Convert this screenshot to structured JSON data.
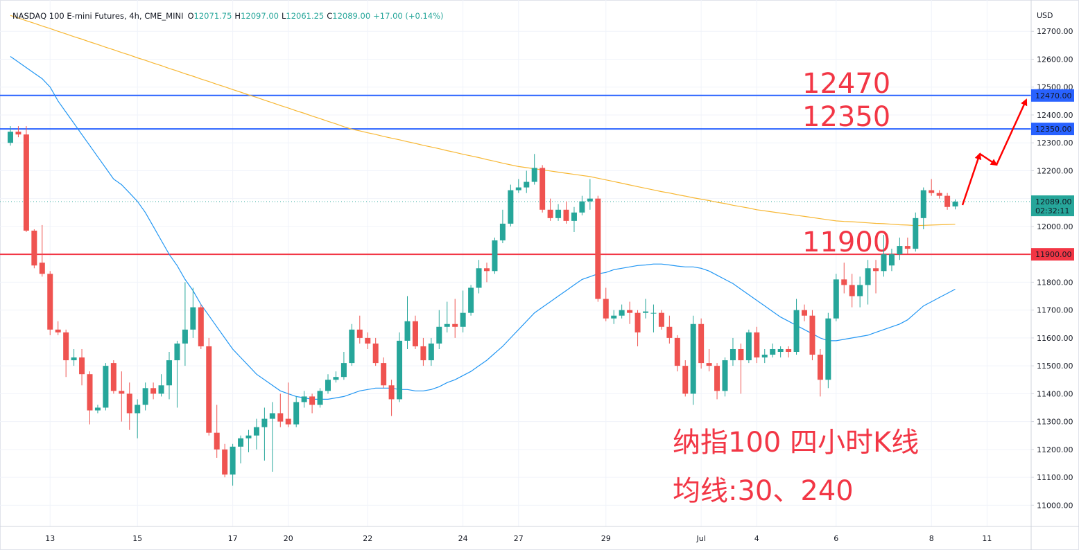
{
  "chart_data": {
    "type": "candlestick",
    "header": {
      "symbol": "NASDAQ 100 E-mini Futures, 4h, CME_MINI",
      "ohlc_labels": [
        "O",
        "H",
        "L",
        "C"
      ],
      "ohlc_values": [
        "12071.75",
        "12097.00",
        "12061.25",
        "12089.00"
      ],
      "change": "+17.00 (+0.14%)"
    },
    "currency": "USD",
    "annotations": [
      "纳指100 四小时K线",
      "均线:30、240"
    ],
    "up_color": "#26a69a",
    "down_color": "#ef5350",
    "grid": true,
    "ylim": [
      10925,
      12800
    ],
    "yticks": [
      {
        "value": 11000,
        "label": "11000.00"
      },
      {
        "value": 11100,
        "label": "11100.00"
      },
      {
        "value": 11200,
        "label": "11200.00"
      },
      {
        "value": 11300,
        "label": "11300.00"
      },
      {
        "value": 11400,
        "label": "11400.00"
      },
      {
        "value": 11500,
        "label": "11500.00"
      },
      {
        "value": 11600,
        "label": "11600.00"
      },
      {
        "value": 11700,
        "label": "11700.00"
      },
      {
        "value": 11800,
        "label": "11800.00"
      },
      {
        "value": 11900,
        "label": "11900.00"
      },
      {
        "value": 12000,
        "label": "12000.00"
      },
      {
        "value": 12100,
        "label": "12100.00"
      },
      {
        "value": 12200,
        "label": "12200.00"
      },
      {
        "value": 12300,
        "label": "12300.00"
      },
      {
        "value": 12400,
        "label": "12400.00"
      },
      {
        "value": 12500,
        "label": "12500.00"
      },
      {
        "value": 12600,
        "label": "12600.00"
      },
      {
        "value": 12700,
        "label": "12700.00"
      }
    ],
    "levels": [
      {
        "value": 12470,
        "label": "12470.00",
        "color": "#2962ff"
      },
      {
        "value": 12350,
        "label": "12350.00",
        "color": "#2962ff"
      },
      {
        "value": 11900,
        "label": "11900.00",
        "color": "#f23645"
      }
    ],
    "last_price": {
      "value": 12089,
      "label": "12089.00",
      "countdown": "02:32:11",
      "color": "#26a69a"
    },
    "categories": [
      null,
      null,
      null,
      null,
      null,
      "13",
      null,
      null,
      null,
      null,
      null,
      null,
      null,
      null,
      null,
      null,
      "15",
      null,
      null,
      null,
      null,
      null,
      null,
      null,
      null,
      null,
      null,
      null,
      "17",
      null,
      null,
      null,
      null,
      null,
      null,
      "20",
      null,
      null,
      null,
      null,
      null,
      null,
      null,
      null,
      null,
      "22",
      null,
      null,
      null,
      null,
      null,
      null,
      null,
      null,
      null,
      null,
      null,
      "24",
      null,
      null,
      null,
      null,
      null,
      null,
      "27",
      null,
      null,
      null,
      null,
      null,
      null,
      null,
      null,
      null,
      null,
      "29",
      null,
      null,
      null,
      null,
      null,
      null,
      null,
      null,
      null,
      null,
      null,
      "Jul",
      null,
      null,
      null,
      null,
      null,
      null,
      "4",
      null,
      null,
      null,
      null,
      null,
      null,
      null,
      null,
      null,
      "6",
      null,
      null,
      null,
      null,
      null,
      null,
      null,
      null,
      null,
      null,
      null,
      "8",
      null,
      null,
      null,
      null,
      null,
      null,
      "11"
    ],
    "ohlc": [
      [
        12300,
        12360,
        12290,
        12340
      ],
      [
        12340,
        12360,
        12320,
        12330
      ],
      [
        12330,
        12360,
        11980,
        11985
      ],
      [
        11985,
        11990,
        11850,
        11860
      ],
      [
        11870,
        12005,
        11820,
        11830
      ],
      [
        11830,
        11840,
        11610,
        11630
      ],
      [
        11630,
        11660,
        11610,
        11620
      ],
      [
        11620,
        11630,
        11460,
        11520
      ],
      [
        11520,
        11560,
        11500,
        11530
      ],
      [
        11530,
        11560,
        11430,
        11470
      ],
      [
        11470,
        11480,
        11290,
        11340
      ],
      [
        11340,
        11360,
        11330,
        11350
      ],
      [
        11350,
        11510,
        11340,
        11500
      ],
      [
        11510,
        11520,
        11400,
        11410
      ],
      [
        11410,
        11480,
        11300,
        11400
      ],
      [
        11400,
        11440,
        11270,
        11330
      ],
      [
        11330,
        11380,
        11240,
        11360
      ],
      [
        11360,
        11440,
        11340,
        11420
      ],
      [
        11420,
        11440,
        11380,
        11400
      ],
      [
        11400,
        11470,
        11390,
        11430
      ],
      [
        11430,
        11550,
        11380,
        11520
      ],
      [
        11520,
        11590,
        11350,
        11580
      ],
      [
        11580,
        11800,
        11500,
        11630
      ],
      [
        11630,
        11780,
        11600,
        11710
      ],
      [
        11710,
        11720,
        11560,
        11570
      ],
      [
        11570,
        11600,
        11250,
        11260
      ],
      [
        11260,
        11360,
        11170,
        11200
      ],
      [
        11200,
        11220,
        11100,
        11110
      ],
      [
        11110,
        11220,
        11070,
        11210
      ],
      [
        11210,
        11250,
        11150,
        11240
      ],
      [
        11240,
        11270,
        11190,
        11250
      ],
      [
        11250,
        11310,
        11200,
        11280
      ],
      [
        11280,
        11350,
        11160,
        11310
      ],
      [
        11310,
        11370,
        11120,
        11330
      ],
      [
        11330,
        11400,
        11280,
        11300
      ],
      [
        11310,
        11440,
        11280,
        11290
      ],
      [
        11290,
        11390,
        11280,
        11370
      ],
      [
        11370,
        11410,
        11350,
        11390
      ],
      [
        11390,
        11400,
        11330,
        11360
      ],
      [
        11360,
        11420,
        11350,
        11410
      ],
      [
        11410,
        11470,
        11400,
        11450
      ],
      [
        11450,
        11480,
        11440,
        11460
      ],
      [
        11460,
        11550,
        11450,
        11510
      ],
      [
        11510,
        11650,
        11500,
        11630
      ],
      [
        11630,
        11680,
        11580,
        11600
      ],
      [
        11600,
        11620,
        11560,
        11580
      ],
      [
        11580,
        11600,
        11500,
        11510
      ],
      [
        11510,
        11530,
        11420,
        11430
      ],
      [
        11430,
        11450,
        11320,
        11380
      ],
      [
        11380,
        11620,
        11370,
        11590
      ],
      [
        11590,
        11750,
        11560,
        11660
      ],
      [
        11660,
        11680,
        11560,
        11570
      ],
      [
        11570,
        11600,
        11500,
        11520
      ],
      [
        11520,
        11600,
        11500,
        11580
      ],
      [
        11580,
        11700,
        11560,
        11640
      ],
      [
        11640,
        11730,
        11620,
        11650
      ],
      [
        11650,
        11740,
        11600,
        11640
      ],
      [
        11640,
        11770,
        11620,
        11690
      ],
      [
        11690,
        11790,
        11680,
        11780
      ],
      [
        11780,
        11880,
        11760,
        11850
      ],
      [
        11850,
        11870,
        11800,
        11840
      ],
      [
        11840,
        11960,
        11830,
        11950
      ],
      [
        11950,
        12060,
        11940,
        12010
      ],
      [
        12010,
        12150,
        12000,
        12130
      ],
      [
        12130,
        12170,
        12120,
        12140
      ],
      [
        12140,
        12200,
        12120,
        12160
      ],
      [
        12160,
        12260,
        12150,
        12210
      ],
      [
        12210,
        12220,
        12050,
        12060
      ],
      [
        12060,
        12100,
        12020,
        12030
      ],
      [
        12030,
        12080,
        12020,
        12060
      ],
      [
        12060,
        12090,
        12010,
        12020
      ],
      [
        12020,
        12070,
        11980,
        12050
      ],
      [
        12050,
        12110,
        12040,
        12090
      ],
      [
        12090,
        12170,
        12060,
        12100
      ],
      [
        12100,
        12110,
        11730,
        11740
      ],
      [
        11740,
        11780,
        11660,
        11670
      ],
      [
        11670,
        11700,
        11650,
        11680
      ],
      [
        11680,
        11720,
        11670,
        11700
      ],
      [
        11700,
        11730,
        11650,
        11690
      ],
      [
        11690,
        11700,
        11570,
        11620
      ],
      [
        11690,
        11740,
        11670,
        11695
      ],
      [
        11690,
        11720,
        11620,
        11690
      ],
      [
        11690,
        11700,
        11630,
        11640
      ],
      [
        11640,
        11680,
        11580,
        11600
      ],
      [
        11600,
        11610,
        11480,
        11500
      ],
      [
        11500,
        11520,
        11390,
        11400
      ],
      [
        11400,
        11680,
        11360,
        11650
      ],
      [
        11650,
        11670,
        11490,
        11510
      ],
      [
        11510,
        11560,
        11480,
        11500
      ],
      [
        11500,
        11510,
        11380,
        11410
      ],
      [
        11410,
        11530,
        11390,
        11520
      ],
      [
        11520,
        11600,
        11500,
        11560
      ],
      [
        11560,
        11580,
        11400,
        11520
      ],
      [
        11520,
        11630,
        11510,
        11620
      ],
      [
        11620,
        11640,
        11510,
        11530
      ],
      [
        11530,
        11560,
        11510,
        11540
      ],
      [
        11540,
        11580,
        11530,
        11560
      ],
      [
        11550,
        11570,
        11530,
        11560
      ],
      [
        11560,
        11570,
        11530,
        11550
      ],
      [
        11550,
        11740,
        11540,
        11700
      ],
      [
        11700,
        11720,
        11660,
        11680
      ],
      [
        11680,
        11700,
        11520,
        11540
      ],
      [
        11540,
        11560,
        11390,
        11450
      ],
      [
        11450,
        11690,
        11420,
        11670
      ],
      [
        11670,
        11830,
        11660,
        11810
      ],
      [
        11810,
        11870,
        11760,
        11790
      ],
      [
        11790,
        11830,
        11710,
        11750
      ],
      [
        11750,
        11820,
        11710,
        11790
      ],
      [
        11790,
        11880,
        11720,
        11850
      ],
      [
        11850,
        11880,
        11760,
        11840
      ],
      [
        11840,
        11970,
        11820,
        11900
      ],
      [
        11860,
        11920,
        11840,
        11900
      ],
      [
        11900,
        11960,
        11880,
        11930
      ],
      [
        11930,
        11960,
        11900,
        11920
      ],
      [
        11920,
        12050,
        11910,
        12030
      ],
      [
        12030,
        12140,
        11990,
        12130
      ],
      [
        12130,
        12170,
        12110,
        12120
      ],
      [
        12120,
        12130,
        12100,
        12110
      ],
      [
        12110,
        12120,
        12060,
        12070
      ],
      [
        12071.75,
        12097,
        12061.25,
        12089
      ],
      null,
      null,
      null,
      null
    ],
    "series": [
      {
        "color": "#2196f3",
        "values": [
          12610,
          12590,
          12570,
          12550,
          12530,
          12500,
          12450,
          12410,
          12370,
          12330,
          12290,
          12250,
          12210,
          12170,
          12150,
          12120,
          12090,
          12050,
          12000,
          11950,
          11900,
          11860,
          11810,
          11770,
          11720,
          11680,
          11640,
          11600,
          11560,
          11530,
          11500,
          11470,
          11450,
          11430,
          11410,
          11400,
          11390,
          11385,
          11380,
          11380,
          11380,
          11385,
          11390,
          11400,
          11410,
          11415,
          11420,
          11420,
          11420,
          11415,
          11415,
          11410,
          11410,
          11415,
          11425,
          11440,
          11450,
          11465,
          11480,
          11500,
          11520,
          11545,
          11570,
          11600,
          11630,
          11660,
          11690,
          11710,
          11730,
          11750,
          11770,
          11790,
          11810,
          11820,
          11830,
          11835,
          11845,
          11850,
          11855,
          11860,
          11862,
          11865,
          11865,
          11862,
          11858,
          11855,
          11855,
          11850,
          11840,
          11825,
          11810,
          11795,
          11775,
          11755,
          11735,
          11715,
          11695,
          11675,
          11660,
          11645,
          11630,
          11615,
          11600,
          11590,
          11590,
          11595,
          11600,
          11605,
          11610,
          11620,
          11630,
          11640,
          11650,
          11665,
          11690,
          11715,
          11730,
          11745,
          11760,
          11775,
          null,
          null,
          null,
          null
        ]
      },
      {
        "color": "#f7b733",
        "values": [
          12757,
          12748,
          12738,
          12729,
          12719,
          12710,
          12700,
          12691,
          12681,
          12672,
          12662,
          12653,
          12643,
          12634,
          12624,
          12615,
          12605,
          12596,
          12586,
          12577,
          12567,
          12558,
          12548,
          12539,
          12529,
          12520,
          12510,
          12501,
          12491,
          12482,
          12472,
          12463,
          12453,
          12444,
          12434,
          12425,
          12415,
          12406,
          12396,
          12387,
          12377,
          12368,
          12358,
          12349,
          12343,
          12336,
          12330,
          12323,
          12317,
          12311,
          12304,
          12298,
          12291,
          12285,
          12279,
          12272,
          12266,
          12259,
          12253,
          12247,
          12240,
          12234,
          12227,
          12221,
          12215,
          12211,
          12207,
          12203,
          12199,
          12195,
          12191,
          12187,
          12183,
          12179,
          12173,
          12167,
          12161,
          12155,
          12149,
          12143,
          12137,
          12131,
          12125,
          12120,
          12114,
          12109,
          12103,
          12098,
          12093,
          12087,
          12082,
          12076,
          12071,
          12066,
          12060,
          12056,
          12052,
          12048,
          12044,
          12040,
          12036,
          12032,
          12028,
          12024,
          12020,
          12018,
          12017,
          12015,
          12013,
          12011,
          12010,
          12008,
          12006,
          12005,
          12003,
          12004,
          12005,
          12006,
          12007,
          12008,
          null,
          null,
          null,
          null
        ]
      }
    ]
  }
}
